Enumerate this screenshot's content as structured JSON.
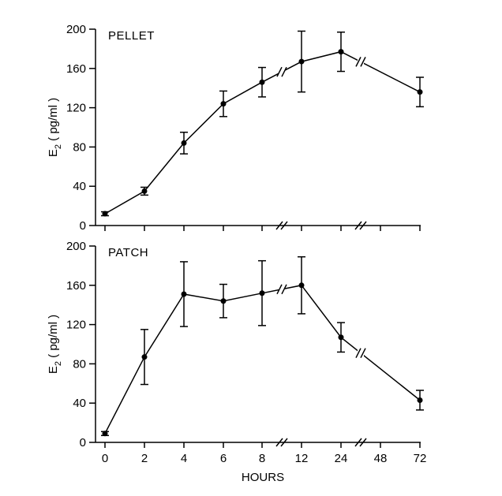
{
  "chart_data": [
    {
      "type": "line",
      "title": "PELLET",
      "ylabel": {
        "main": "E",
        "sub": "2",
        "unit": " ( pg/ml )"
      },
      "xlabel": "",
      "categories": [
        "0",
        "2",
        "4",
        "6",
        "8",
        "12",
        "24",
        "48",
        "72"
      ],
      "x": [
        0,
        2,
        4,
        6,
        8,
        12,
        24,
        72
      ],
      "values": [
        12,
        35,
        84,
        124,
        146,
        167,
        177,
        136
      ],
      "error": [
        2,
        4,
        11,
        13,
        15,
        31,
        20,
        15
      ],
      "ylim": [
        0,
        200
      ],
      "yticks": [
        "0",
        "40",
        "80",
        "120",
        "160",
        "200"
      ],
      "axis_breaks": [
        "8-12",
        "24-48"
      ]
    },
    {
      "type": "line",
      "title": "PATCH",
      "ylabel": {
        "main": "E",
        "sub": "2",
        "unit": " ( pg/ml )"
      },
      "xlabel": "HOURS",
      "categories": [
        "0",
        "2",
        "4",
        "6",
        "8",
        "12",
        "24",
        "48",
        "72"
      ],
      "x": [
        0,
        2,
        4,
        6,
        8,
        12,
        24,
        72
      ],
      "values": [
        9,
        87,
        151,
        144,
        152,
        160,
        107,
        43
      ],
      "error": [
        2,
        28,
        33,
        17,
        33,
        29,
        15,
        10
      ],
      "ylim": [
        0,
        200
      ],
      "yticks": [
        "0",
        "40",
        "80",
        "120",
        "160",
        "200"
      ],
      "axis_breaks": [
        "8-12",
        "24-48"
      ]
    }
  ]
}
